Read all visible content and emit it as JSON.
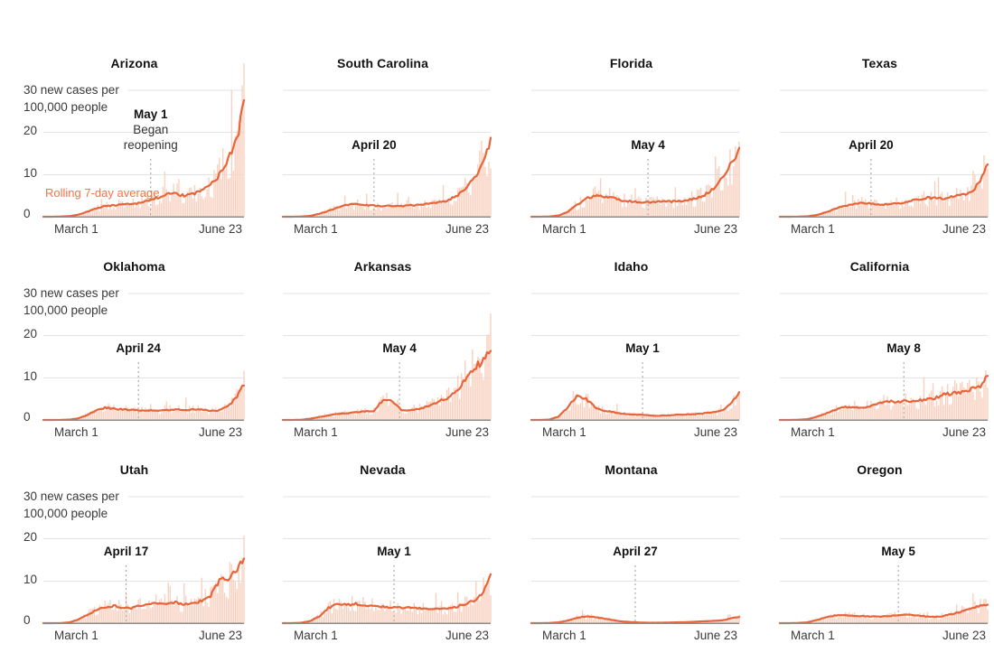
{
  "chart_data": {
    "type": "bar",
    "description": "Small multiples: daily new coronavirus cases per 100,000 people (bars) with rolling 7-day average (line) for 12 states, March 1 to June 23, with state reopening dates marked by dashed lines.",
    "x_axis": {
      "start_label": "March 1",
      "end_label": "June 23",
      "total_days": 114
    },
    "y_axis": {
      "label_line1": "30 new cases per",
      "label_line2": "100,000 people",
      "ticks": [
        30,
        20,
        10,
        0
      ],
      "tick_labels": [
        "20",
        "10",
        "0"
      ],
      "max": 30,
      "grid": true
    },
    "legend": {
      "rolling_label": "Rolling 7-day average"
    },
    "sample_days": [
      0,
      5,
      10,
      15,
      20,
      25,
      30,
      35,
      40,
      45,
      50,
      55,
      60,
      65,
      70,
      75,
      80,
      85,
      90,
      95,
      100,
      105,
      110,
      114
    ],
    "charts": [
      {
        "state": "Arizona",
        "reopen_label": "May 1",
        "reopen_sublabel": "Began reopening",
        "reopen_day": 61,
        "avg_series": [
          0,
          0,
          0.05,
          0.15,
          0.5,
          1.2,
          2.0,
          2.5,
          2.7,
          3.0,
          3.1,
          3.3,
          3.9,
          4.5,
          5.4,
          5.4,
          5.0,
          5.3,
          6.5,
          7.5,
          10,
          14,
          18.5,
          27
        ]
      },
      {
        "state": "South Carolina",
        "reopen_label": "April 20",
        "reopen_day": 50,
        "avg_series": [
          0,
          0,
          0.05,
          0.2,
          0.7,
          1.4,
          2.2,
          2.9,
          3.0,
          2.8,
          2.6,
          2.5,
          2.6,
          2.5,
          2.7,
          2.8,
          3.0,
          3.3,
          3.8,
          4.8,
          6.5,
          9,
          13,
          18.5
        ]
      },
      {
        "state": "Florida",
        "reopen_label": "May 4",
        "reopen_day": 64,
        "avg_series": [
          0,
          0,
          0.05,
          0.3,
          1.2,
          2.8,
          4.3,
          5.0,
          4.8,
          4.4,
          3.9,
          3.6,
          3.4,
          3.4,
          3.6,
          3.6,
          3.7,
          3.9,
          4.3,
          5.2,
          6.8,
          9,
          13,
          16
        ]
      },
      {
        "state": "Texas",
        "reopen_label": "April 20",
        "reopen_day": 50,
        "avg_series": [
          0,
          0,
          0.02,
          0.1,
          0.4,
          1.0,
          1.8,
          2.5,
          3.0,
          3.3,
          3.1,
          2.9,
          3.0,
          3.2,
          3.6,
          4.1,
          4.5,
          4.4,
          4.2,
          4.8,
          5.2,
          5.8,
          8.5,
          13
        ]
      },
      {
        "state": "Oklahoma",
        "reopen_label": "April 24",
        "reopen_day": 54,
        "avg_series": [
          0,
          0,
          0.02,
          0.1,
          0.4,
          1.2,
          2.3,
          2.9,
          2.7,
          2.5,
          2.4,
          2.3,
          2.3,
          2.2,
          2.4,
          2.5,
          2.3,
          2.5,
          2.5,
          2.1,
          2.3,
          3.2,
          5.5,
          8.5
        ]
      },
      {
        "state": "Arkansas",
        "reopen_label": "May 4",
        "reopen_day": 64,
        "avg_series": [
          0,
          0,
          0.05,
          0.3,
          0.7,
          1.1,
          1.4,
          1.6,
          1.8,
          2.0,
          2.2,
          4.8,
          4.5,
          2.4,
          2.3,
          2.7,
          3.3,
          4.3,
          5.2,
          6.8,
          9.5,
          12.5,
          14,
          16.5
        ]
      },
      {
        "state": "Idaho",
        "reopen_label": "May 1",
        "reopen_day": 61,
        "avg_series": [
          0,
          0,
          0.1,
          0.8,
          3.0,
          5.8,
          5.0,
          3.0,
          2.2,
          1.9,
          1.5,
          1.3,
          1.2,
          1.1,
          1.0,
          1.1,
          1.2,
          1.3,
          1.4,
          1.6,
          1.8,
          2.2,
          4.0,
          6.8
        ]
      },
      {
        "state": "California",
        "reopen_label": "May 8",
        "reopen_day": 68,
        "avg_series": [
          0,
          0,
          0.05,
          0.2,
          0.7,
          1.5,
          2.4,
          3.0,
          3.1,
          2.9,
          3.3,
          4.0,
          4.4,
          4.3,
          4.5,
          4.6,
          4.8,
          5.2,
          6.0,
          6.3,
          6.6,
          7.3,
          8.2,
          10.5
        ]
      },
      {
        "state": "Utah",
        "reopen_label": "April 17",
        "reopen_day": 47,
        "avg_series": [
          0,
          0,
          0.02,
          0.2,
          0.9,
          2.0,
          3.1,
          3.9,
          4.1,
          3.6,
          3.6,
          4.1,
          4.5,
          4.7,
          4.7,
          4.9,
          4.6,
          4.8,
          5.3,
          6.5,
          10.2,
          10.4,
          12.5,
          15.2
        ]
      },
      {
        "state": "Nevada",
        "reopen_label": "May 1",
        "reopen_day": 61,
        "avg_series": [
          0,
          0,
          0.1,
          0.5,
          1.6,
          3.6,
          4.6,
          4.3,
          4.6,
          4.2,
          4.0,
          3.9,
          3.8,
          3.7,
          3.6,
          3.5,
          3.4,
          3.6,
          3.5,
          3.9,
          4.4,
          5.4,
          7.5,
          12
        ]
      },
      {
        "state": "Montana",
        "reopen_label": "April 27",
        "reopen_day": 57,
        "avg_series": [
          0,
          0,
          0.05,
          0.2,
          0.6,
          1.3,
          1.6,
          1.4,
          1.1,
          0.7,
          0.4,
          0.25,
          0.15,
          0.1,
          0.1,
          0.15,
          0.2,
          0.25,
          0.35,
          0.45,
          0.55,
          0.7,
          1.2,
          1.5
        ]
      },
      {
        "state": "Oregon",
        "reopen_label": "May 5",
        "reopen_day": 65,
        "avg_series": [
          0,
          0,
          0.05,
          0.2,
          0.7,
          1.4,
          1.8,
          1.9,
          1.8,
          1.7,
          1.6,
          1.6,
          1.7,
          1.9,
          2.0,
          1.9,
          1.6,
          1.5,
          1.7,
          2.2,
          2.8,
          3.4,
          4.2,
          4.3
        ]
      }
    ],
    "colors": {
      "bar": "#f8d1c0",
      "line": "#e8653a",
      "rolling_label": "#f2734a",
      "grid": "#e3e3e3",
      "baseline": "#8c8c8c",
      "reopen_line": "#9e9e9e",
      "title_text": "#121212",
      "axis_text": "#3a3a3a"
    }
  }
}
